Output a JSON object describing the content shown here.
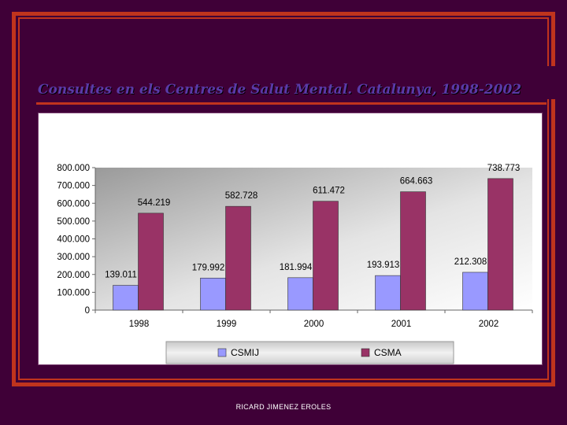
{
  "slide": {
    "title": "Consultes en els Centres de Salut Mental. Catalunya, 1998-2002",
    "footer": "RICARD JIMENEZ EROLES",
    "colors": {
      "background": "#3f0037",
      "accent": "#c0341d",
      "title_text": "#5a3aa8"
    }
  },
  "chart_data": {
    "type": "bar",
    "categories": [
      "1998",
      "1999",
      "2000",
      "2001",
      "2002"
    ],
    "series": [
      {
        "name": "CSMIJ",
        "color": "#9999ff",
        "values": [
          139011,
          179992,
          181994,
          193913,
          212308
        ],
        "labels": [
          "139.011",
          "179.992",
          "181.994",
          "193.913",
          "212.308"
        ]
      },
      {
        "name": "CSMA",
        "color": "#993366",
        "values": [
          544219,
          582728,
          611472,
          664663,
          738773
        ],
        "labels": [
          "544.219",
          "582.728",
          "611.472",
          "664.663",
          "738.773"
        ]
      }
    ],
    "y_ticks": [
      "0",
      "100.000",
      "200.000",
      "300.000",
      "400.000",
      "500.000",
      "600.000",
      "700.000",
      "800.000"
    ],
    "ylim": [
      0,
      800000
    ],
    "legend_position": "bottom",
    "grid": false
  }
}
